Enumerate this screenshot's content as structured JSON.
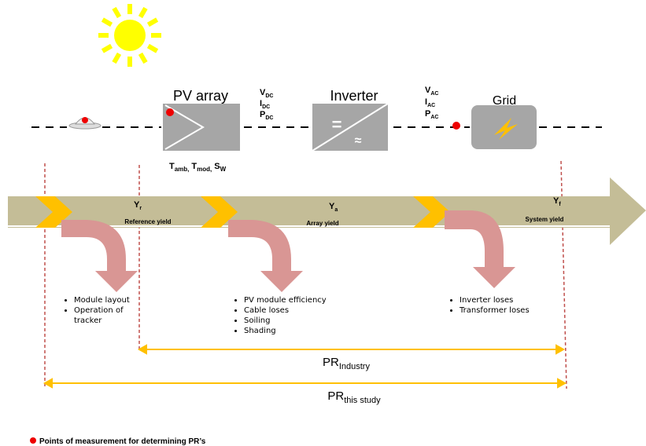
{
  "components": {
    "pv_array": "PV array",
    "inverter": "Inverter",
    "inverter_dc_symbol": "=",
    "inverter_ac_symbol": "≈",
    "grid": "Grid"
  },
  "dc_quantities": [
    {
      "main": "V",
      "sub": "DC"
    },
    {
      "main": "I",
      "sub": "DC"
    },
    {
      "main": "P",
      "sub": "DC"
    }
  ],
  "ac_quantities": [
    {
      "main": "V",
      "sub": "AC"
    },
    {
      "main": "I",
      "sub": "AC"
    },
    {
      "main": "P",
      "sub": "AC"
    }
  ],
  "array_conditions": [
    {
      "main": "T",
      "sub": "amb,"
    },
    {
      "main": "T",
      "sub": "mod,"
    },
    {
      "main": "S",
      "sub": "W"
    }
  ],
  "yields": [
    {
      "main": "Y",
      "sub": "r",
      "label": "Reference  yield"
    },
    {
      "main": "Y",
      "sub": "a",
      "label": "Array yield"
    },
    {
      "main": "Y",
      "sub": "f",
      "label": "System yield"
    }
  ],
  "losses": [
    [
      "Module layout",
      "Operation of tracker"
    ],
    [
      "PV module efficiency",
      "Cable loses",
      "Soiling",
      "Shading"
    ],
    [
      "Inverter loses",
      "Transformer loses"
    ]
  ],
  "pr_industry": {
    "main": "PR",
    "sub": "Industry"
  },
  "pr_study": {
    "main": "PR",
    "sub": "this study"
  },
  "legend": "Points of measurement for determining PR’s"
}
